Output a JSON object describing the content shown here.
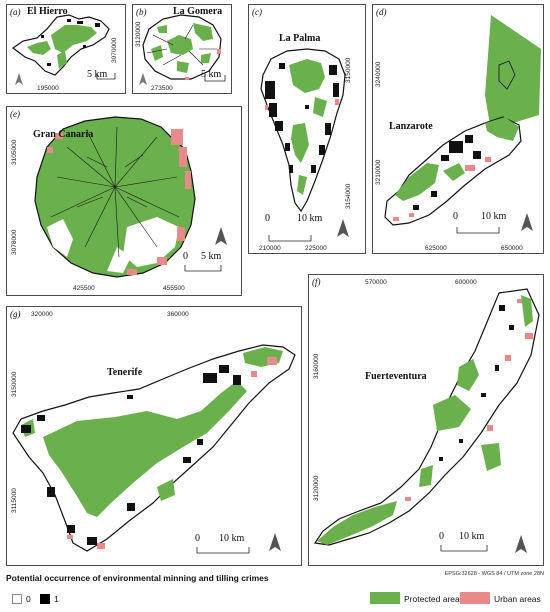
{
  "title": "Potential occurrence of environmental minning and tilling crimes",
  "crs_note": "EPSG:32628 - WGS 84 / UTM zone 28N",
  "colors": {
    "protected": "#6ab04c",
    "urban": "#e88a8a",
    "crime": "#000000",
    "nocrime": "#ffffff",
    "frame": "#4a4a4a"
  },
  "legend": {
    "classes": [
      {
        "label": "0"
      },
      {
        "label": "1"
      }
    ],
    "protected_label": "Protected areas",
    "urban_label": "Urban areas"
  },
  "panels": {
    "a": {
      "label": "(a)",
      "name": "El Hierro",
      "scale": "5 km",
      "xcoords": [
        "195000"
      ],
      "ycoords": [
        "3070000"
      ]
    },
    "b": {
      "label": "(b)",
      "name": "La Gomera",
      "scale": "5 km",
      "xcoords": [
        "273500"
      ],
      "ycoords": [
        "3120000"
      ]
    },
    "c": {
      "label": "(c)",
      "name": "La Palma",
      "scale_0": "0",
      "scale": "10 km",
      "xcoords": [
        "210000",
        "225000"
      ],
      "ycoords": [
        "3150000",
        "3154000"
      ]
    },
    "d": {
      "label": "(d)",
      "name": "Lanzarote",
      "scale_0": "0",
      "scale": "10 km",
      "xcoords": [
        "625000",
        "650000"
      ],
      "ycoords": [
        "3240000",
        "3210000"
      ]
    },
    "e": {
      "label": "(e)",
      "name": "Gran Canaria",
      "scale_0": "0",
      "scale": "5 km",
      "xcoords": [
        "425500",
        "455500"
      ],
      "ycoords": [
        "3105000",
        "3078000"
      ]
    },
    "f": {
      "label": "(f)",
      "name": "Fuerteventura",
      "scale_0": "0",
      "scale": "10 km",
      "xcoords": [
        "570000",
        "600000"
      ],
      "ycoords": [
        "3160000",
        "3120000"
      ]
    },
    "g": {
      "label": "(g)",
      "name": "Tenerife",
      "scale_0": "0",
      "scale": "10 km",
      "xcoords": [
        "320000",
        "360000"
      ],
      "ycoords": [
        "3150000",
        "3115000"
      ]
    }
  }
}
